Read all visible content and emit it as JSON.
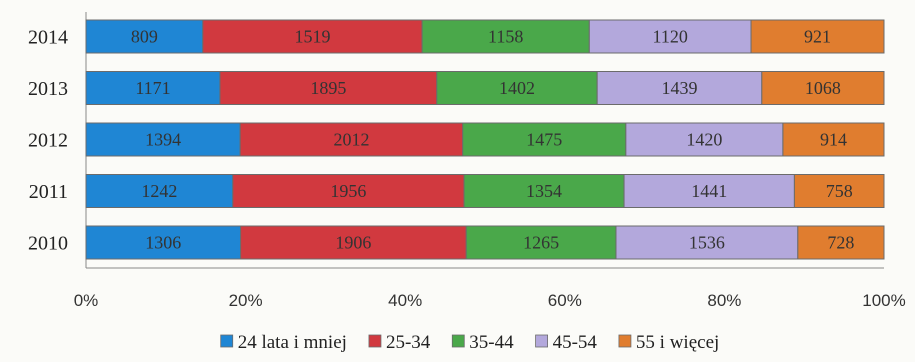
{
  "chart_data": {
    "type": "bar",
    "orientation": "horizontal",
    "stacked": "percent",
    "categories": [
      "2014",
      "2013",
      "2012",
      "2011",
      "2010"
    ],
    "series": [
      {
        "name": "24 lata i mniej",
        "color": "#1f86d4",
        "values": [
          809,
          1171,
          1394,
          1242,
          1306
        ]
      },
      {
        "name": "25-34",
        "color": "#d1393f",
        "values": [
          1519,
          1895,
          2012,
          1956,
          1906
        ]
      },
      {
        "name": "35-44",
        "color": "#4aa84a",
        "values": [
          1158,
          1402,
          1475,
          1354,
          1265
        ]
      },
      {
        "name": "45-54",
        "color": "#b3a8dc",
        "values": [
          1120,
          1439,
          1420,
          1441,
          1536
        ]
      },
      {
        "name": "55 i więcej",
        "color": "#e07d2f",
        "values": [
          921,
          1068,
          914,
          758,
          728
        ]
      }
    ],
    "x_ticks": [
      "0%",
      "20%",
      "40%",
      "60%",
      "80%",
      "100%"
    ],
    "xlim": [
      0,
      100
    ],
    "legend_position": "bottom",
    "grid": false
  }
}
